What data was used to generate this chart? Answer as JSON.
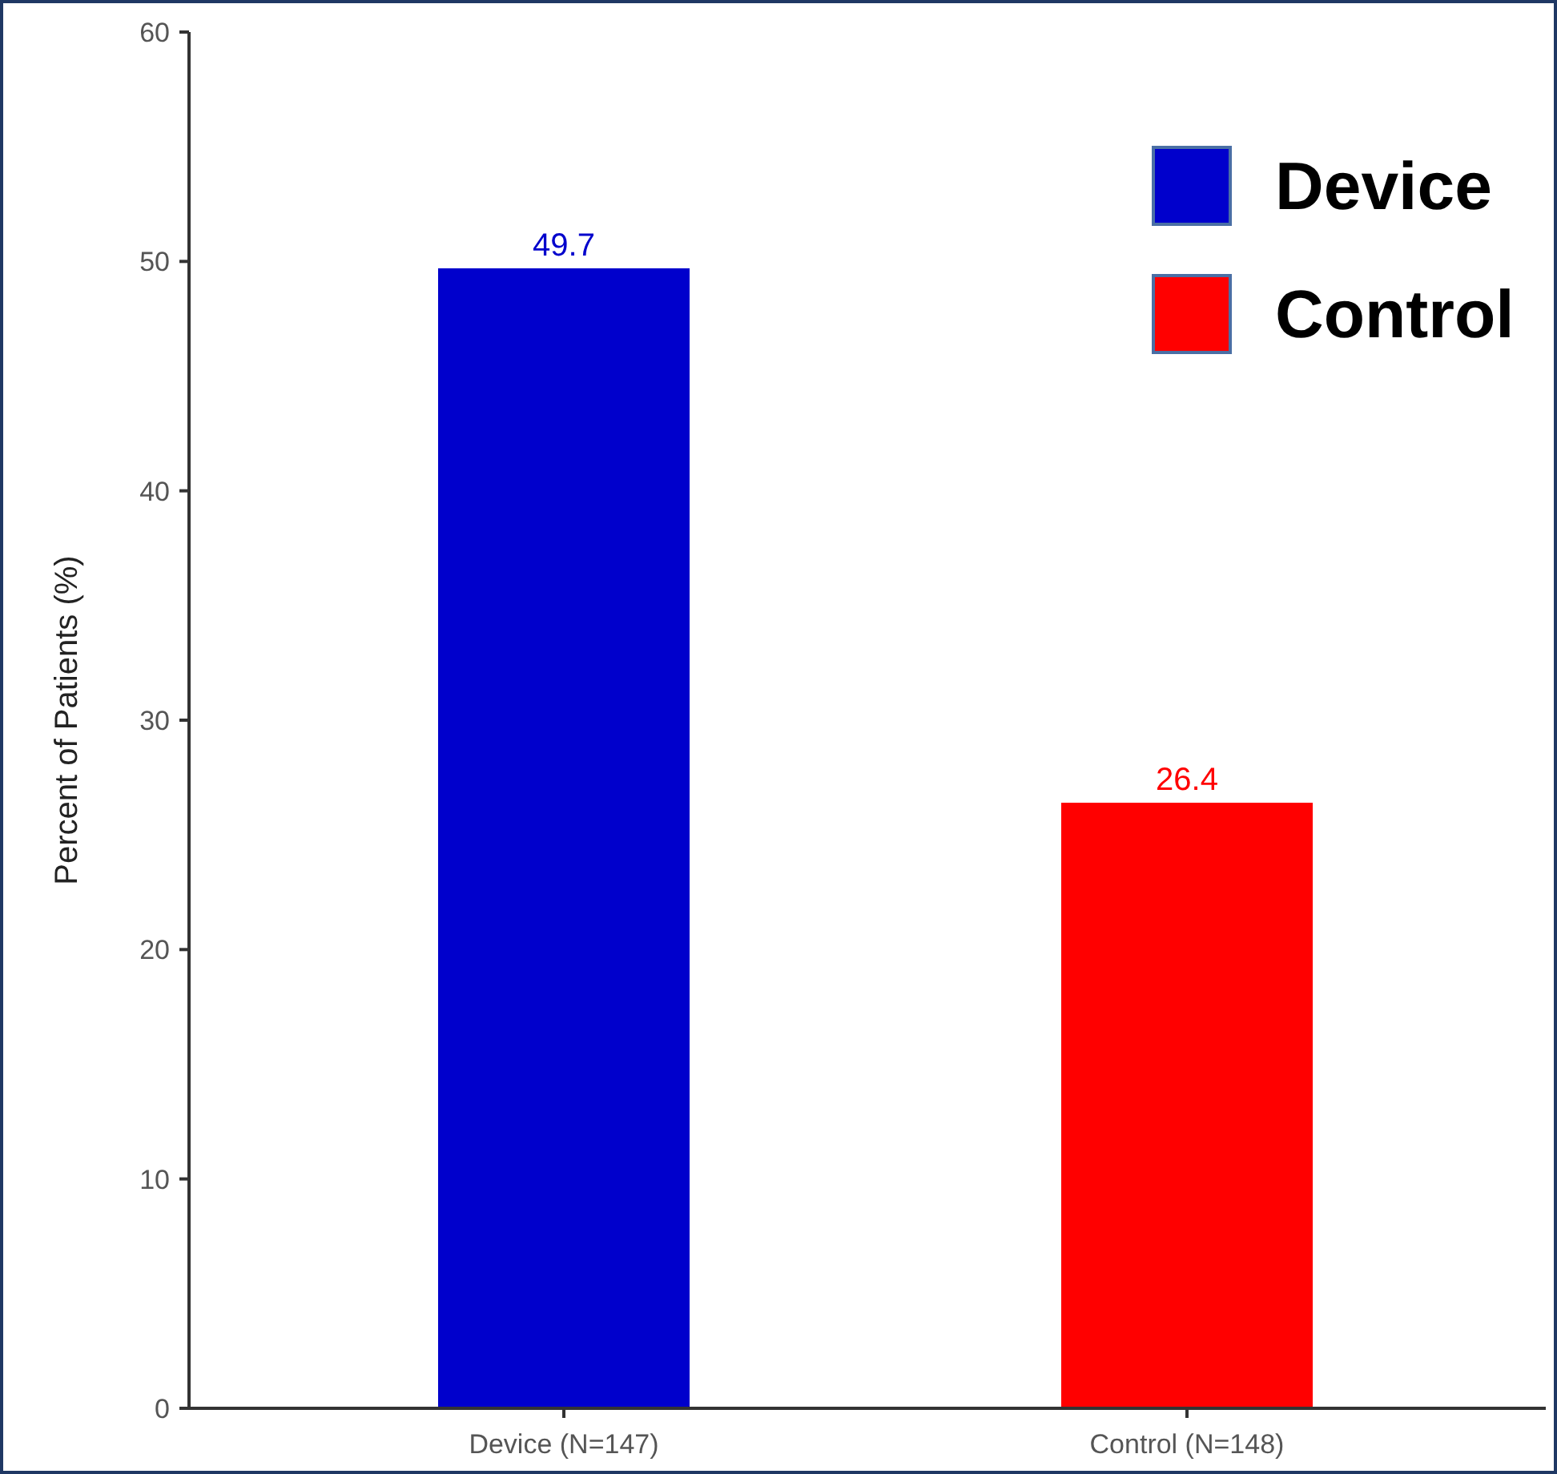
{
  "chart_data": {
    "type": "bar",
    "ylabel": "Percent of Patients (%)",
    "categories": [
      "Device (N=147)",
      "Control (N=148)"
    ],
    "series": [
      {
        "name": "Device",
        "color": "#0000cc",
        "values": [
          49.7,
          null
        ]
      },
      {
        "name": "Control",
        "color": "#ff0000",
        "values": [
          null,
          26.4
        ]
      }
    ],
    "ylim": [
      0,
      60
    ],
    "yticks": [
      0,
      10,
      20,
      30,
      40,
      50,
      60
    ],
    "data_labels": true,
    "legend": "top right",
    "grid": false
  }
}
